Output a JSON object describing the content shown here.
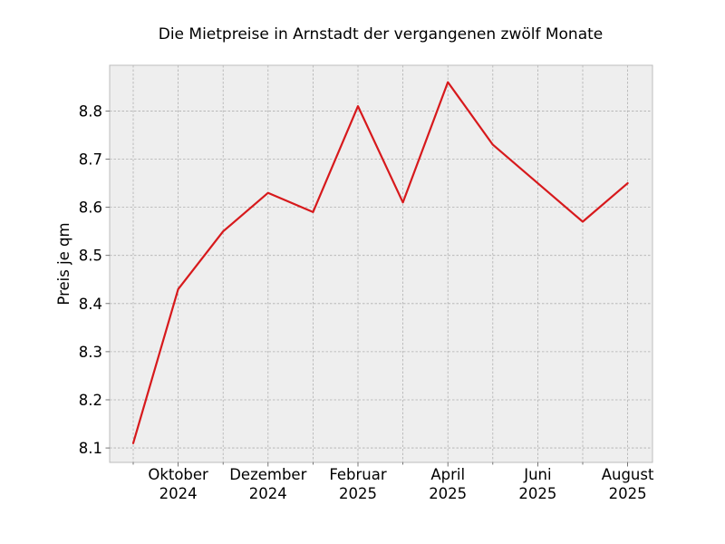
{
  "chart_data": {
    "type": "line",
    "title": "Die Mietpreise in Arnstadt der vergangenen zwölf Monate",
    "xlabel": "",
    "ylabel": "Preis je qm",
    "x": [
      "2024-09",
      "2024-10",
      "2024-11",
      "2024-12",
      "2025-01",
      "2025-02",
      "2025-03",
      "2025-04",
      "2025-05",
      "2025-06",
      "2025-07",
      "2025-08"
    ],
    "series": [
      {
        "values": [
          8.11,
          8.43,
          8.55,
          8.63,
          8.59,
          8.81,
          8.61,
          8.86,
          8.73,
          8.65,
          8.57,
          8.65
        ],
        "color": "#d7191c"
      }
    ],
    "ylim": [
      8.07,
      8.895
    ],
    "yticks": [
      8.1,
      8.2,
      8.3,
      8.4,
      8.5,
      8.6,
      8.7,
      8.8
    ],
    "xtick_labels": [
      {
        "index": 1,
        "line1": "Oktober",
        "line2": "2024"
      },
      {
        "index": 3,
        "line1": "Dezember",
        "line2": "2024"
      },
      {
        "index": 5,
        "line1": "Februar",
        "line2": "2025"
      },
      {
        "index": 7,
        "line1": "April",
        "line2": "2025"
      },
      {
        "index": 9,
        "line1": "Juni",
        "line2": "2025"
      },
      {
        "index": 11,
        "line1": "August",
        "line2": "2025"
      }
    ],
    "grid": true,
    "background": "#eeeeee",
    "grid_color": "#b0b0b0"
  }
}
